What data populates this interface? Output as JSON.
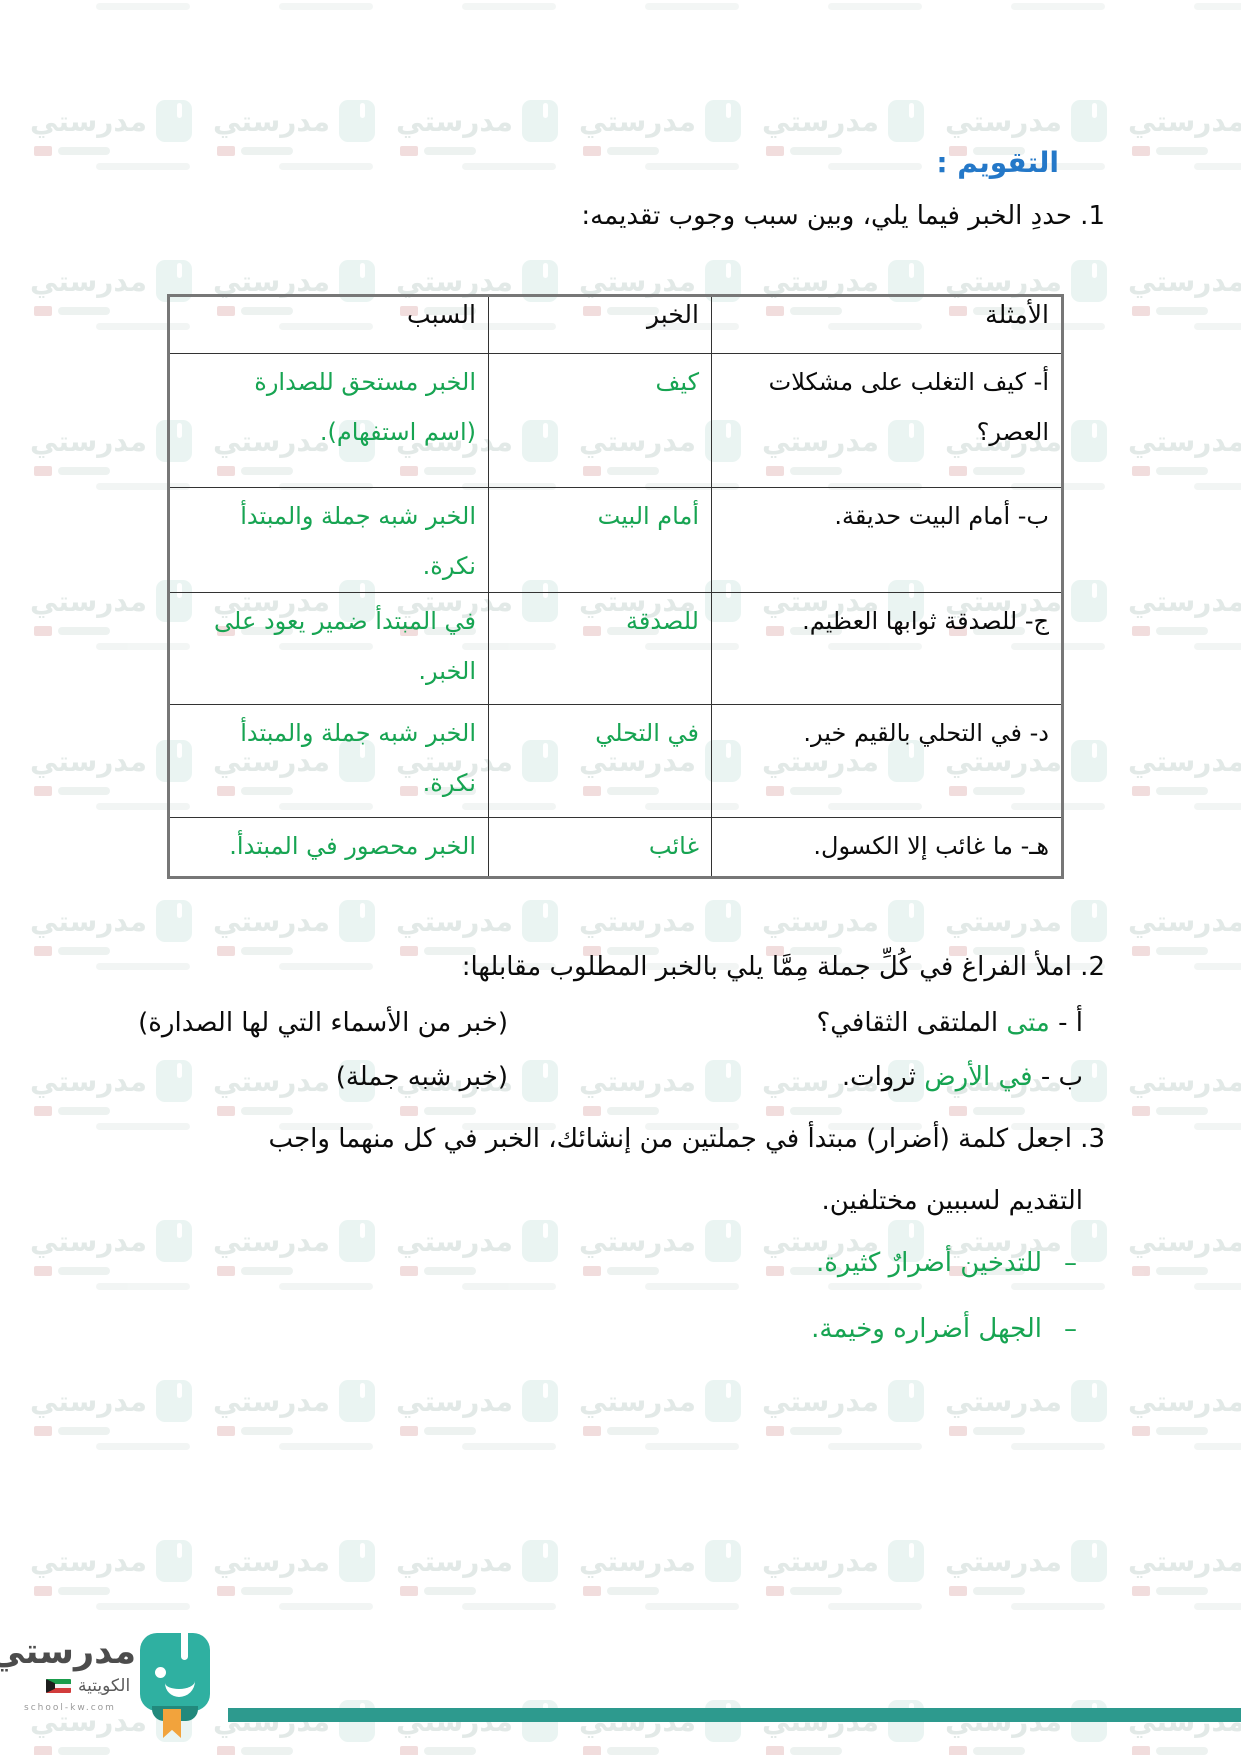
{
  "title": "التقويم :",
  "q1": {
    "heading": "1. حددِ الخبر فيما يلي، وبين سبب وجوب تقديمه:",
    "table": {
      "col_examples": "الأمثلة",
      "col_khabar": "الخبر",
      "col_reason": "السبب",
      "rows": [
        {
          "ex1": "أ- كيف التغلب على مشكلات",
          "ex2": "العصر؟",
          "kh": "كيف",
          "r1": "الخبر مستحق للصدارة",
          "r2": "(اسم استفهام)."
        },
        {
          "ex1": "ب- أمام البيت حديقة.",
          "ex2": "",
          "kh": "أمام البيت",
          "r1": "الخبر شبه جملة والمبتدأ",
          "r2": "نكرة."
        },
        {
          "ex1": "ج- للصدقة ثوابها العظيم.",
          "ex2": "",
          "kh": "للصدقة",
          "r1": "في المبتدأ ضمير يعود على",
          "r2": "الخبر."
        },
        {
          "ex1": "د- في التحلي بالقيم خير.",
          "ex2": "",
          "kh": "في التحلي",
          "r1": "الخبر شبه جملة والمبتدأ",
          "r2": "نكرة."
        },
        {
          "ex1": "هـ- ما غائب إلا الكسول.",
          "ex2": "",
          "kh": "غائب",
          "r1": "الخبر محصور في المبتدأ.",
          "r2": ""
        }
      ]
    }
  },
  "q2": {
    "heading": "2. املأ الفراغ في كُلِّ جملة مِمَّا يلي بالخبر المطلوب مقابلها:",
    "items": [
      {
        "prefix": "أ - ",
        "answer": "متى",
        "rest": " الملتقى الثقافي؟",
        "hint": "(خبر من الأسماء التي لها الصدارة)"
      },
      {
        "prefix": "ب - ",
        "answer": "في الأرض",
        "rest": " ثروات.",
        "hint": "(خبر شبه جملة)"
      }
    ]
  },
  "q3": {
    "line1": "3. اجعل كلمة (أضرار) مبتدأ في جملتين من إنشائك، الخبر في كل منهما واجب",
    "line2": "التقديم لسببين مختلفين.",
    "dash": "–",
    "answers": [
      "للتدخين أضرارٌ كثيرة.",
      "الجهل أضراره وخيمة."
    ]
  },
  "footer": {
    "brand": "مدرستي",
    "brand_sub": "الكويتية",
    "website": "school-kw.com"
  },
  "watermark": {
    "text": "مدرستي"
  },
  "colors": {
    "green": "#17a452",
    "blue": "#2478c8",
    "teal": "#2d9a8e",
    "teal_light": "#2fb0a1",
    "orange": "#f2a33c"
  }
}
